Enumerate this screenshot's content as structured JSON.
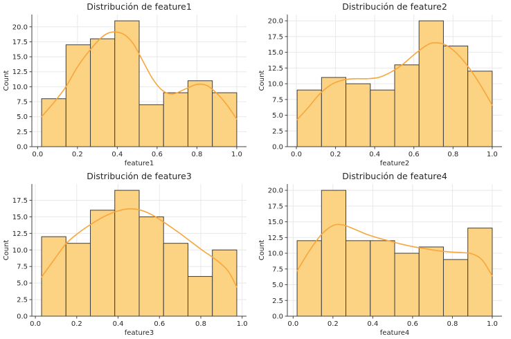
{
  "figure": {
    "background": "#ffffff",
    "rows": 2,
    "cols": 2
  },
  "style": {
    "bar_fill": "#fcd283",
    "bar_edge": "#3d3d3d",
    "kde_color": "#f7a63c",
    "grid_color": "#e8e8e8",
    "spine_color": "#424242",
    "tick_color": "#424242",
    "text_color": "#262626",
    "title_font_size": 12.5,
    "tick_font_size": 10,
    "label_font_size": 10
  },
  "chart_data": [
    {
      "type": "bar",
      "subtype": "histogram_with_kde",
      "title": "Distribución de feature1",
      "xlabel": "feature1",
      "ylabel": "Count",
      "bin_start": 0.02,
      "bin_width": 0.1225,
      "values": [
        8,
        17,
        18,
        21,
        7,
        9,
        11,
        9
      ],
      "kde": [
        [
          0.02,
          5.0
        ],
        [
          0.08,
          7.3
        ],
        [
          0.14,
          9.9
        ],
        [
          0.2,
          13.3
        ],
        [
          0.26,
          16.0
        ],
        [
          0.32,
          18.2
        ],
        [
          0.37,
          19.1
        ],
        [
          0.43,
          18.8
        ],
        [
          0.48,
          17.2
        ],
        [
          0.53,
          14.2
        ],
        [
          0.58,
          11.2
        ],
        [
          0.63,
          9.3
        ],
        [
          0.68,
          8.8
        ],
        [
          0.74,
          9.6
        ],
        [
          0.8,
          10.4
        ],
        [
          0.85,
          10.2
        ],
        [
          0.9,
          8.9
        ],
        [
          0.95,
          7.0
        ],
        [
          1.0,
          4.6
        ]
      ],
      "xlim": [
        -0.029,
        1.049
      ],
      "ylim": [
        0,
        22.05
      ],
      "xticks": [
        0.0,
        0.2,
        0.4,
        0.6,
        0.8,
        1.0
      ],
      "yticks": [
        0.0,
        2.5,
        5.0,
        7.5,
        10.0,
        12.5,
        15.0,
        17.5,
        20.0
      ],
      "grid": true,
      "legend": null
    },
    {
      "type": "bar",
      "subtype": "histogram_with_kde",
      "title": "Distribución de feature2",
      "xlabel": "feature2",
      "ylabel": "Count",
      "bin_start": 0.004,
      "bin_width": 0.1245,
      "values": [
        9,
        11,
        10,
        9,
        13,
        20,
        16,
        12
      ],
      "kde": [
        [
          0.004,
          4.3
        ],
        [
          0.06,
          6.2
        ],
        [
          0.12,
          8.4
        ],
        [
          0.18,
          9.9
        ],
        [
          0.24,
          10.6
        ],
        [
          0.3,
          10.8
        ],
        [
          0.36,
          10.8
        ],
        [
          0.42,
          11.0
        ],
        [
          0.48,
          11.8
        ],
        [
          0.54,
          13.0
        ],
        [
          0.6,
          14.6
        ],
        [
          0.66,
          16.0
        ],
        [
          0.7,
          16.5
        ],
        [
          0.76,
          16.2
        ],
        [
          0.82,
          14.8
        ],
        [
          0.88,
          12.6
        ],
        [
          0.94,
          9.8
        ],
        [
          1.0,
          6.6
        ]
      ],
      "xlim": [
        -0.046,
        1.05
      ],
      "ylim": [
        0,
        21.0
      ],
      "xticks": [
        0.0,
        0.2,
        0.4,
        0.6,
        0.8,
        1.0
      ],
      "yticks": [
        0.0,
        2.5,
        5.0,
        7.5,
        10.0,
        12.5,
        15.0,
        17.5,
        20.0
      ],
      "grid": true,
      "legend": null
    },
    {
      "type": "bar",
      "subtype": "histogram_with_kde",
      "title": "Distribución de feature3",
      "xlabel": "feature3",
      "ylabel": "Count",
      "bin_start": 0.03,
      "bin_width": 0.118,
      "values": [
        12,
        11,
        16,
        19,
        15,
        11,
        6,
        10
      ],
      "kde": [
        [
          0.03,
          5.9
        ],
        [
          0.09,
          8.5
        ],
        [
          0.15,
          11.0
        ],
        [
          0.21,
          12.6
        ],
        [
          0.27,
          13.9
        ],
        [
          0.33,
          15.0
        ],
        [
          0.39,
          15.8
        ],
        [
          0.45,
          16.2
        ],
        [
          0.51,
          16.0
        ],
        [
          0.57,
          15.2
        ],
        [
          0.63,
          14.0
        ],
        [
          0.69,
          12.7
        ],
        [
          0.75,
          11.3
        ],
        [
          0.81,
          9.9
        ],
        [
          0.87,
          8.6
        ],
        [
          0.93,
          6.9
        ],
        [
          0.974,
          4.4
        ]
      ],
      "xlim": [
        -0.017,
        1.021
      ],
      "ylim": [
        0,
        19.95
      ],
      "xticks": [
        0.0,
        0.2,
        0.4,
        0.6,
        0.8,
        1.0
      ],
      "yticks": [
        0.0,
        2.5,
        5.0,
        7.5,
        10.0,
        12.5,
        15.0,
        17.5
      ],
      "grid": true,
      "legend": null
    },
    {
      "type": "bar",
      "subtype": "histogram_with_kde",
      "title": "Distribución de feature4",
      "xlabel": "feature4",
      "ylabel": "Count",
      "bin_start": 0.02,
      "bin_width": 0.1225,
      "values": [
        12,
        20,
        12,
        12,
        10,
        11,
        9,
        14
      ],
      "kde": [
        [
          0.02,
          7.2
        ],
        [
          0.08,
          10.3
        ],
        [
          0.14,
          12.9
        ],
        [
          0.2,
          14.4
        ],
        [
          0.25,
          14.5
        ],
        [
          0.31,
          13.8
        ],
        [
          0.37,
          13.0
        ],
        [
          0.43,
          12.4
        ],
        [
          0.49,
          11.9
        ],
        [
          0.55,
          11.4
        ],
        [
          0.61,
          11.0
        ],
        [
          0.67,
          10.7
        ],
        [
          0.73,
          10.4
        ],
        [
          0.79,
          10.2
        ],
        [
          0.85,
          10.1
        ],
        [
          0.9,
          9.9
        ],
        [
          0.95,
          8.9
        ],
        [
          1.0,
          6.4
        ]
      ],
      "xlim": [
        -0.029,
        1.049
      ],
      "ylim": [
        0,
        21.0
      ],
      "xticks": [
        0.0,
        0.2,
        0.4,
        0.6,
        0.8,
        1.0
      ],
      "yticks": [
        0.0,
        2.5,
        5.0,
        7.5,
        10.0,
        12.5,
        15.0,
        17.5,
        20.0
      ],
      "grid": true,
      "legend": null
    }
  ]
}
